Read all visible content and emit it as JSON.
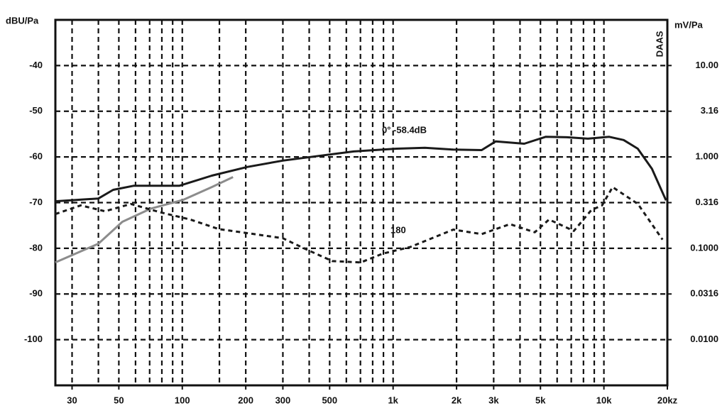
{
  "chart_data": {
    "type": "line",
    "y_label": "dBU/Pa",
    "y2_label": "mV/Pa",
    "brand": "DAAS",
    "annotations": [
      "0° -58.4dB",
      "180"
    ],
    "log_x": true,
    "log_y2": true,
    "grid": true,
    "xlim": [
      25,
      20000
    ],
    "xticks": [
      30,
      50,
      100,
      200,
      300,
      500,
      {
        "value": 1000,
        "label": "1k"
      },
      {
        "value": 2000,
        "label": "2k"
      },
      {
        "value": 3000,
        "label": "3k"
      },
      {
        "value": 5000,
        "label": "5k"
      },
      {
        "value": 10000,
        "label": "10k"
      },
      {
        "value": 20000,
        "label": "20kz"
      }
    ],
    "xgrid": [
      30,
      40,
      50,
      60,
      70,
      80,
      90,
      100,
      150,
      200,
      300,
      400,
      500,
      600,
      700,
      800,
      900,
      1000,
      2000,
      3000,
      4000,
      5000,
      6000,
      7000,
      8000,
      9000,
      10000
    ],
    "ylim": [
      -110,
      -30
    ],
    "yticks": [
      -40,
      -50,
      -60,
      -70,
      -80,
      -90,
      -100
    ],
    "y2lim": [
      0.00316,
      31.6
    ],
    "y2ticks": [
      {
        "value": 10,
        "label": "10.00"
      },
      3.16,
      {
        "value": 1,
        "label": "1.000"
      },
      0.316,
      {
        "value": 0.1,
        "label": "0.1000"
      },
      0.0316,
      {
        "value": 0.01,
        "label": "0.0100"
      }
    ],
    "series": [
      {
        "color": "#1a1a1a",
        "dash": false,
        "x": [
          25,
          40,
          47,
          59,
          97,
          138,
          203,
          300,
          441,
          651,
          1040,
          1415,
          1927,
          2630,
          3070,
          4190,
          5290,
          6670,
          8400,
          10600,
          12400,
          14470,
          16900,
          19700
        ],
        "values": [
          -69.7,
          -69.1,
          -67.2,
          -66.3,
          -66.3,
          -64.1,
          -62.2,
          -60.8,
          -59.8,
          -58.8,
          -58.2,
          -58.0,
          -58.4,
          -58.5,
          -56.6,
          -57.1,
          -55.6,
          -55.7,
          -56.0,
          -55.6,
          -56.3,
          -58.2,
          -62.6,
          -69.5
        ]
      },
      {
        "color": "#8c8c8c",
        "dash": false,
        "x": [
          25,
          40,
          52,
          71,
          101,
          138,
          174
        ],
        "values": [
          -83.1,
          -79.0,
          -74.2,
          -71.3,
          -69.4,
          -66.6,
          -64.4
        ]
      },
      {
        "color": "#1a1a1a",
        "dash": true,
        "x": [
          25,
          33,
          43,
          57,
          80,
          109,
          149,
          220,
          300,
          378,
          515,
          703,
          888,
          1210,
          1930,
          2630,
          3580,
          4700,
          5490,
          7200,
          8730,
          9800,
          11000,
          14500,
          18970
        ],
        "values": [
          -72.5,
          -70.6,
          -71.9,
          -70.3,
          -72.2,
          -73.7,
          -75.8,
          -76.9,
          -77.8,
          -80.0,
          -82.8,
          -83.1,
          -81.2,
          -79.7,
          -75.9,
          -76.9,
          -74.7,
          -76.5,
          -73.7,
          -76.2,
          -71.6,
          -70.6,
          -66.6,
          -70.3,
          -78.1
        ]
      }
    ]
  }
}
